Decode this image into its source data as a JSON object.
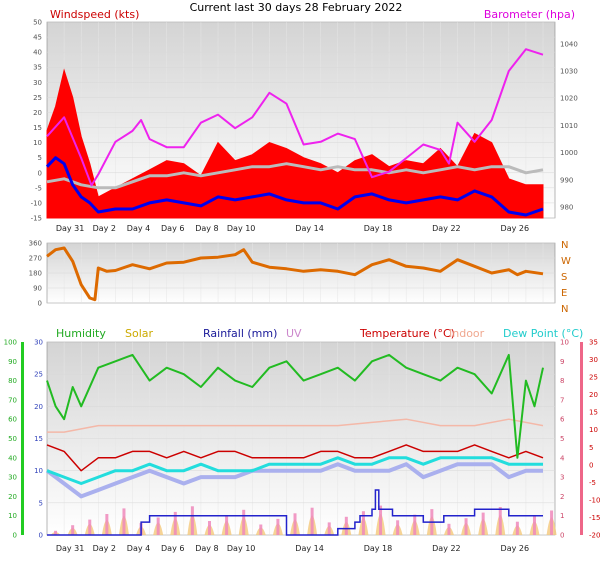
{
  "title": "Current last 30 days 28 February 2022",
  "x_axis": {
    "tick_labels": [
      "Day 31",
      "Day 2",
      "Day 4",
      "Day 6",
      "Day 8",
      "Day 10",
      "Day 14",
      "Day 18",
      "Day 22",
      "Day 26"
    ],
    "tick_days": [
      0,
      2,
      4,
      6,
      8,
      10,
      14,
      18,
      22,
      26
    ],
    "day_range": [
      -1,
      28.7
    ]
  },
  "colors": {
    "wind_gust": "#ff0000",
    "wind_speed": "#0000ee",
    "barometer": "#ee22ee",
    "wind_grey": "#bbbbbb",
    "direction": "#dd6a00",
    "humidity": "#22bb22",
    "solar": "#ccaa00",
    "rainfall": "#2222cc",
    "uv": "#cc88cc",
    "temperature": "#cc0000",
    "indoor": "#f4b8a8",
    "dewpoint": "#22dddd",
    "temp_low": "#aab0ee"
  },
  "chart_data": [
    {
      "type": "line",
      "panel": "wind_barometer",
      "left_label": "Windspeed (kts)",
      "right_label": "Barometer (hpa)",
      "left_ticks": [
        -15,
        -10,
        -5,
        0,
        5,
        10,
        15,
        20,
        25,
        30,
        35,
        40,
        45,
        50
      ],
      "right_ticks": [
        980,
        990,
        1000,
        1010,
        1020,
        1030,
        1040
      ],
      "ylim": [
        -15,
        50
      ],
      "y2lim": [
        976,
        1048
      ],
      "series": [
        {
          "key": "wind_gust",
          "x": [
            -1,
            -0.5,
            0,
            0.5,
            1,
            1.5,
            2,
            3,
            4,
            5,
            6,
            7,
            8,
            9,
            10,
            11,
            12,
            13,
            14,
            15,
            16,
            17,
            18,
            19,
            20,
            21,
            22,
            23,
            24,
            25,
            26,
            27,
            28
          ],
          "y": [
            14,
            22,
            34,
            25,
            12,
            3,
            -8,
            -5,
            -2,
            1,
            4,
            3,
            -1,
            10,
            4,
            6,
            10,
            8,
            5,
            3,
            0,
            4,
            6,
            2,
            4,
            3,
            8,
            2,
            13,
            10,
            -2,
            -4,
            -4
          ]
        },
        {
          "key": "wind_speed",
          "x": [
            -1,
            -0.5,
            0,
            0.5,
            1,
            1.5,
            2,
            3,
            4,
            5,
            6,
            7,
            8,
            9,
            10,
            11,
            12,
            13,
            14,
            15,
            16,
            17,
            18,
            19,
            20,
            21,
            22,
            23,
            24,
            25,
            26,
            27,
            28
          ],
          "y": [
            2,
            5,
            3,
            -4,
            -8,
            -10,
            -13,
            -12,
            -12,
            -10,
            -9,
            -10,
            -11,
            -8,
            -9,
            -8,
            -7,
            -9,
            -10,
            -10,
            -12,
            -8,
            -7,
            -9,
            -10,
            -9,
            -8,
            -9,
            -6,
            -8,
            -13,
            -14,
            -12
          ]
        },
        {
          "key": "wind_grey",
          "x": [
            -1,
            0,
            1,
            2,
            3,
            4,
            5,
            6,
            7,
            8,
            9,
            10,
            11,
            12,
            13,
            14,
            15,
            16,
            17,
            18,
            19,
            20,
            21,
            22,
            23,
            24,
            25,
            26,
            27,
            28
          ],
          "y": [
            -3,
            -2,
            -4,
            -5,
            -5,
            -3,
            -1,
            -1,
            0,
            -1,
            0,
            1,
            2,
            2,
            3,
            2,
            1,
            2,
            1,
            1,
            0,
            1,
            0,
            1,
            2,
            1,
            2,
            2,
            0,
            1
          ],
          "note_axis": "barometer"
        },
        {
          "key": "barometer",
          "x": [
            -1,
            0,
            1,
            1.6,
            2,
            3,
            4,
            4.5,
            5,
            6,
            7,
            8,
            9,
            10,
            11,
            12,
            13,
            14,
            15,
            16,
            17,
            18,
            19,
            20,
            21,
            22,
            22.5,
            23,
            24,
            25,
            26,
            27,
            28
          ],
          "y": [
            1006,
            1013,
            998,
            988,
            992,
            1004,
            1008,
            1012,
            1005,
            1002,
            1002,
            1011,
            1014,
            1009,
            1013,
            1022,
            1018,
            1003,
            1004,
            1007,
            1005,
            991,
            993,
            998,
            1003,
            1001,
            996,
            1011,
            1004,
            1012,
            1030,
            1038,
            1036
          ]
        }
      ]
    },
    {
      "type": "line",
      "panel": "wind_direction",
      "left_ticks": [
        0,
        90,
        180,
        270,
        360
      ],
      "right_labels": [
        "N",
        "W",
        "S",
        "E",
        "N"
      ],
      "ylim": [
        0,
        360
      ],
      "series": [
        {
          "key": "direction",
          "x": [
            -1,
            -0.5,
            0,
            0.5,
            1,
            1.5,
            1.8,
            2,
            2.5,
            3,
            4,
            5,
            6,
            7,
            8,
            9,
            10,
            10.5,
            11,
            12,
            13,
            14,
            15,
            16,
            17,
            18,
            19,
            20,
            21,
            22,
            23,
            24,
            25,
            26,
            26.5,
            27,
            28
          ],
          "y": [
            280,
            320,
            330,
            250,
            110,
            30,
            20,
            210,
            190,
            195,
            230,
            205,
            240,
            245,
            270,
            275,
            290,
            320,
            245,
            215,
            205,
            190,
            200,
            190,
            170,
            230,
            260,
            220,
            210,
            190,
            260,
            220,
            180,
            200,
            170,
            190,
            175
          ]
        }
      ]
    },
    {
      "type": "line",
      "panel": "temperature_humidity",
      "legend": [
        "Humidity",
        "Solar",
        "Rainfall (mm)",
        "UV",
        "Temperature (°C)",
        "Indoor",
        "Dew Point (°C)"
      ],
      "humidity_ticks": [
        0,
        10,
        20,
        30,
        40,
        50,
        60,
        70,
        80,
        90,
        100
      ],
      "left_ticks": [
        0,
        5,
        10,
        15,
        20,
        25,
        30
      ],
      "uv_ticks": [
        0,
        1,
        2,
        3,
        4,
        5,
        6,
        7,
        8,
        9,
        10
      ],
      "right_ticks": [
        -20,
        -15,
        -10,
        -5,
        0,
        5,
        10,
        15,
        20,
        25,
        30,
        35
      ],
      "ylim": [
        0,
        30
      ],
      "series": [
        {
          "key": "humidity",
          "x": [
            -1,
            -0.5,
            0,
            0.5,
            1,
            2,
            3,
            4,
            5,
            6,
            7,
            8,
            9,
            10,
            11,
            12,
            13,
            14,
            15,
            16,
            17,
            18,
            19,
            20,
            21,
            22,
            23,
            24,
            25,
            26,
            26.5,
            27,
            27.5,
            28
          ],
          "y": [
            24,
            20,
            18,
            23,
            20,
            26,
            27,
            28,
            24,
            26,
            25,
            23,
            26,
            24,
            23,
            26,
            27,
            24,
            25,
            26,
            24,
            27,
            28,
            26,
            25,
            24,
            26,
            25,
            22,
            28,
            12,
            24,
            20,
            26
          ]
        },
        {
          "key": "indoor",
          "x": [
            -1,
            0,
            2,
            4,
            6,
            8,
            10,
            12,
            14,
            16,
            18,
            20,
            22,
            24,
            26,
            28
          ],
          "y": [
            16,
            16,
            17,
            17,
            17,
            17,
            17,
            17,
            17,
            17,
            17.5,
            18,
            17,
            17,
            18,
            17
          ]
        },
        {
          "key": "temperature",
          "x": [
            -1,
            0,
            1,
            2,
            3,
            4,
            5,
            6,
            7,
            8,
            9,
            10,
            11,
            12,
            13,
            14,
            15,
            16,
            17,
            18,
            19,
            20,
            21,
            22,
            23,
            24,
            25,
            26,
            27,
            28
          ],
          "y": [
            14,
            13,
            10,
            12,
            12,
            13,
            13,
            12,
            13,
            12,
            13,
            13,
            12,
            12,
            12,
            12,
            13,
            13,
            12,
            12,
            13,
            14,
            13,
            13,
            13,
            14,
            13,
            12,
            13,
            12
          ]
        },
        {
          "key": "dewpoint",
          "x": [
            -1,
            0,
            1,
            2,
            3,
            4,
            5,
            6,
            7,
            8,
            9,
            10,
            11,
            12,
            13,
            14,
            15,
            16,
            17,
            18,
            19,
            20,
            21,
            22,
            23,
            24,
            25,
            26,
            27,
            28
          ],
          "y": [
            10,
            9,
            8,
            9,
            10,
            10,
            11,
            10,
            10,
            11,
            10,
            10,
            10,
            11,
            11,
            11,
            11,
            12,
            11,
            11,
            12,
            12,
            11,
            12,
            12,
            12,
            12,
            11,
            11,
            11
          ]
        },
        {
          "key": "temp_low",
          "x": [
            -1,
            0,
            1,
            2,
            3,
            4,
            5,
            6,
            7,
            8,
            9,
            10,
            11,
            12,
            13,
            14,
            15,
            16,
            17,
            18,
            19,
            20,
            21,
            22,
            23,
            24,
            25,
            26,
            27,
            28
          ],
          "y": [
            10,
            8,
            6,
            7,
            8,
            9,
            10,
            9,
            8,
            9,
            9,
            9,
            10,
            10,
            10,
            10,
            10,
            11,
            10,
            10,
            10,
            11,
            9,
            10,
            11,
            11,
            11,
            9,
            10,
            10
          ]
        },
        {
          "key": "rainfall",
          "x": [
            -1,
            3,
            4,
            4.5,
            4.5,
            5,
            13,
            16,
            17,
            17.3,
            18,
            18.2,
            18.4,
            19,
            19.2,
            20,
            21,
            22,
            22.2,
            23,
            24,
            25,
            26,
            28
          ],
          "y": [
            0,
            0,
            0,
            1,
            2,
            3,
            0,
            1,
            2,
            3,
            4,
            7,
            4,
            4,
            3,
            3,
            2,
            2,
            3,
            3,
            4,
            4,
            3,
            3
          ]
        }
      ]
    }
  ]
}
